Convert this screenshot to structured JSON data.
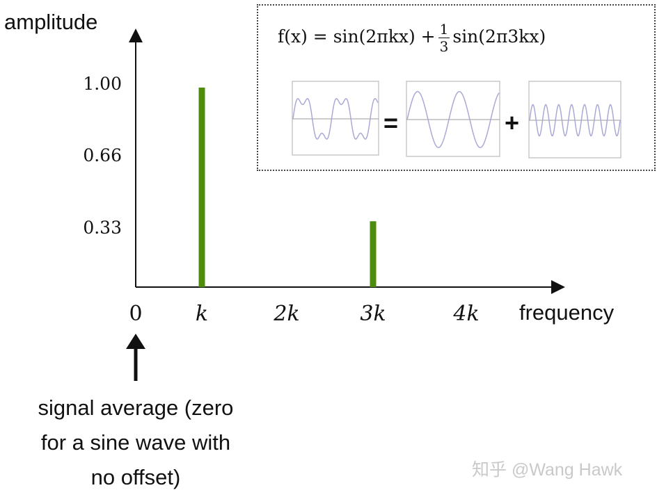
{
  "chart_data": {
    "type": "bar",
    "ylabel": "amplitude",
    "xlabel": "frequency",
    "y_ticks": [
      "1.00",
      "0.66",
      "0.33"
    ],
    "x_ticks": [
      "0",
      "k",
      "2k",
      "3k",
      "4k"
    ],
    "categories": [
      "k",
      "3k"
    ],
    "values": [
      1.0,
      0.33
    ],
    "ylim": [
      0,
      1.0
    ],
    "bar_color": "#4e8c0c",
    "grid": false,
    "annotation": "signal average (zero for a sine wave with no offset)"
  },
  "inset": {
    "formula_lhs": "f(x) = sin(2πkx) +",
    "frac_num": "1",
    "frac_den": "3",
    "formula_rhs": "sin(2π3kx)",
    "equals": "=",
    "plus": "+"
  },
  "note_lines": [
    "signal average (zero",
    "for a sine wave with",
    "no offset)"
  ],
  "watermark": "知乎 @Wang Hawk"
}
